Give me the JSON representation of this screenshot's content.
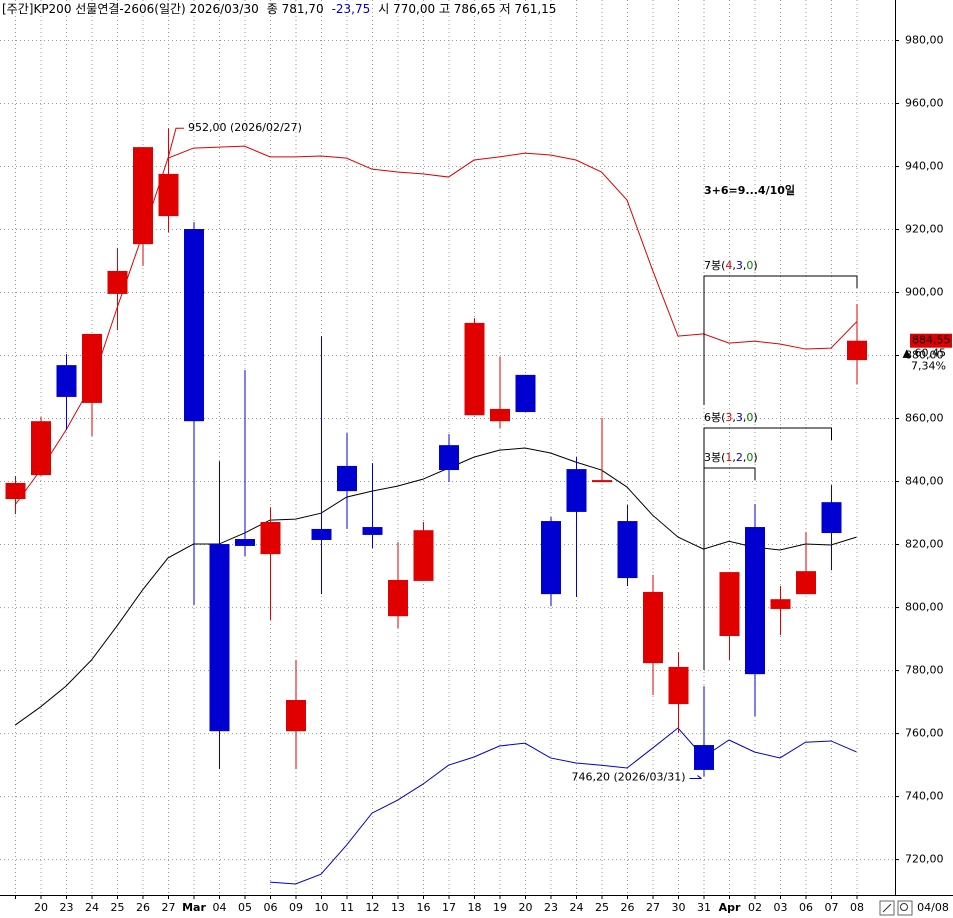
{
  "chart_data": {
    "type": "candlestick",
    "title_parts": [
      {
        "text": "[주간]KP200 선물연결-2606(일간) 2026/03/30",
        "color": "#000000"
      },
      {
        "text": "종 781,70",
        "color": "#000000"
      },
      {
        "text": "-23,75",
        "color": "#0000d0"
      },
      {
        "text": "시 770,00 고 786,65 저 761,15",
        "color": "#000000"
      }
    ],
    "categories": [
      null,
      "20",
      "23",
      "24",
      "25",
      "26",
      "27",
      "Mar",
      "04",
      "05",
      "06",
      "09",
      "10",
      "11",
      "12",
      "13",
      "16",
      "17",
      "18",
      "19",
      "20",
      "23",
      "24",
      "25",
      "26",
      "27",
      "30",
      "31",
      "Apr",
      "02",
      "03",
      "06",
      "07",
      "08"
    ],
    "open": [
      834.3,
      841.9,
      876.8,
      864.8,
      899.4,
      915.2,
      924.1,
      920.0,
      820.0,
      821.6,
      816.8,
      760.6,
      824.8,
      844.8,
      825.4,
      797.1,
      808.3,
      851.4,
      860.9,
      859.0,
      873.7,
      827.3,
      843.8,
      840.2,
      827.3,
      782.2,
      769.2,
      756.2,
      790.8,
      825.4,
      799.4,
      804.1,
      833.3,
      878.4
    ],
    "high": [
      841.6,
      860.3,
      880.3,
      886.7,
      914.0,
      946.0,
      952.0,
      922.2,
      846.3,
      875.2,
      831.7,
      783.2,
      886.0,
      855.2,
      845.7,
      820.6,
      827.0,
      854.9,
      891.7,
      879.4,
      873.7,
      828.6,
      847.6,
      860.0,
      832.4,
      810.2,
      785.7,
      774.9,
      811.1,
      832.7,
      806.7,
      823.8,
      838.7,
      896.2
    ],
    "low": [
      829.5,
      841.6,
      856.2,
      854.3,
      887.9,
      908.3,
      919.0,
      800.6,
      748.6,
      816.2,
      795.9,
      748.6,
      804.1,
      824.8,
      818.7,
      793.3,
      808.3,
      839.7,
      860.9,
      856.8,
      861.9,
      800.3,
      803.2,
      840.0,
      806.7,
      772.1,
      760.0,
      746.2,
      783.2,
      765.4,
      791.1,
      804.1,
      811.7,
      870.8
    ],
    "close": [
      839.4,
      859.0,
      866.7,
      886.7,
      906.7,
      946.0,
      937.5,
      859.0,
      760.6,
      819.4,
      827.0,
      770.5,
      821.3,
      836.8,
      822.9,
      808.6,
      824.4,
      843.5,
      890.2,
      862.9,
      861.9,
      804.1,
      830.2,
      840.3,
      809.2,
      804.8,
      781.0,
      748.3,
      811.1,
      778.7,
      802.5,
      811.4,
      823.5,
      884.55
    ],
    "up_color": "#e00000",
    "down_color": "#0000d0",
    "lines": [
      {
        "color": "#e00000",
        "values": [
          832.4,
          843.5,
          856.2,
          870.5,
          894.9,
          918.1,
          942.5,
          945.7,
          946.0,
          946.3,
          942.9,
          942.9,
          943.2,
          942.5,
          939.0,
          938.1,
          937.5,
          936.5,
          941.9,
          942.9,
          944.1,
          943.5,
          941.9,
          938.1,
          929.2,
          907.0,
          886.0,
          886.7,
          883.8,
          884.4,
          883.5,
          881.9,
          882.2,
          890.5
        ]
      },
      {
        "color": "#000000",
        "values": [
          762.5,
          768.3,
          774.9,
          783.2,
          794.0,
          805.4,
          815.6,
          820.0,
          820.0,
          823.5,
          827.6,
          827.9,
          829.8,
          834.9,
          836.8,
          838.4,
          840.6,
          844.1,
          847.6,
          849.8,
          850.5,
          848.9,
          846.0,
          843.5,
          838.1,
          829.2,
          822.2,
          818.4,
          820.9,
          819.0,
          818.1,
          820.0,
          819.7,
          822.2
        ]
      },
      {
        "color": "#0000d0",
        "values": [
          null,
          null,
          null,
          null,
          null,
          null,
          null,
          null,
          null,
          null,
          712.7,
          712.1,
          715.2,
          724.4,
          734.6,
          738.7,
          743.8,
          749.8,
          752.4,
          755.9,
          756.8,
          752.1,
          750.5,
          749.8,
          748.9,
          755.2,
          761.6,
          752.4,
          757.8,
          754.0,
          752.1,
          757.1,
          757.5,
          754.0
        ]
      }
    ],
    "ylim": [
      708.6,
      992.7
    ],
    "yticks": [
      {
        "value": 720,
        "label": "720,00"
      },
      {
        "value": 740,
        "label": "740,00"
      },
      {
        "value": 760,
        "label": "760,00"
      },
      {
        "value": 780,
        "label": "780,00"
      },
      {
        "value": 800,
        "label": "800,00"
      },
      {
        "value": 820,
        "label": "820,00"
      },
      {
        "value": 840,
        "label": "840,00"
      },
      {
        "value": 860,
        "label": "860,00"
      },
      {
        "value": 880,
        "label": "880,00"
      },
      {
        "value": 900,
        "label": "900,00"
      },
      {
        "value": 920,
        "label": "920,00"
      },
      {
        "value": 940,
        "label": "940,00"
      },
      {
        "value": 960,
        "label": "960,00"
      },
      {
        "value": 980,
        "label": "980,00"
      }
    ],
    "grid": true,
    "high_annotation": {
      "value": 952.0,
      "label": "952,00 (2026/02/27)"
    },
    "low_annotation": {
      "value": 746.2,
      "label": "746,20 (2026/03/31)"
    },
    "note": "3+6=9...4/10일",
    "counts": [
      [
        {
          "text": "7봉(",
          "color": "#000000"
        },
        {
          "text": "4",
          "color": "#e00000"
        },
        {
          "text": ",",
          "color": "#000000"
        },
        {
          "text": "3",
          "color": "#0000d0"
        },
        {
          "text": ",",
          "color": "#000000"
        },
        {
          "text": "0",
          "color": "#008000"
        },
        {
          "text": ")",
          "color": "#000000"
        }
      ],
      [
        {
          "text": "6봉(",
          "color": "#000000"
        },
        {
          "text": "3",
          "color": "#e00000"
        },
        {
          "text": ",",
          "color": "#000000"
        },
        {
          "text": "3",
          "color": "#0000d0"
        },
        {
          "text": ",",
          "color": "#000000"
        },
        {
          "text": "0",
          "color": "#008000"
        },
        {
          "text": ")",
          "color": "#000000"
        }
      ],
      [
        {
          "text": "3봉(",
          "color": "#000000"
        },
        {
          "text": "1",
          "color": "#e00000"
        },
        {
          "text": ",",
          "color": "#000000"
        },
        {
          "text": "2",
          "color": "#0000d0"
        },
        {
          "text": ",",
          "color": "#000000"
        },
        {
          "text": "0",
          "color": "#008000"
        },
        {
          "text": ")",
          "color": "#000000"
        }
      ]
    ],
    "last_price": {
      "value": 884.55,
      "label": "884,55"
    },
    "change": {
      "value": 60.45,
      "label": "▲ 60,45"
    },
    "change_pct": {
      "value": 7.34,
      "label": "7,34%"
    },
    "end_date": "04/08"
  }
}
